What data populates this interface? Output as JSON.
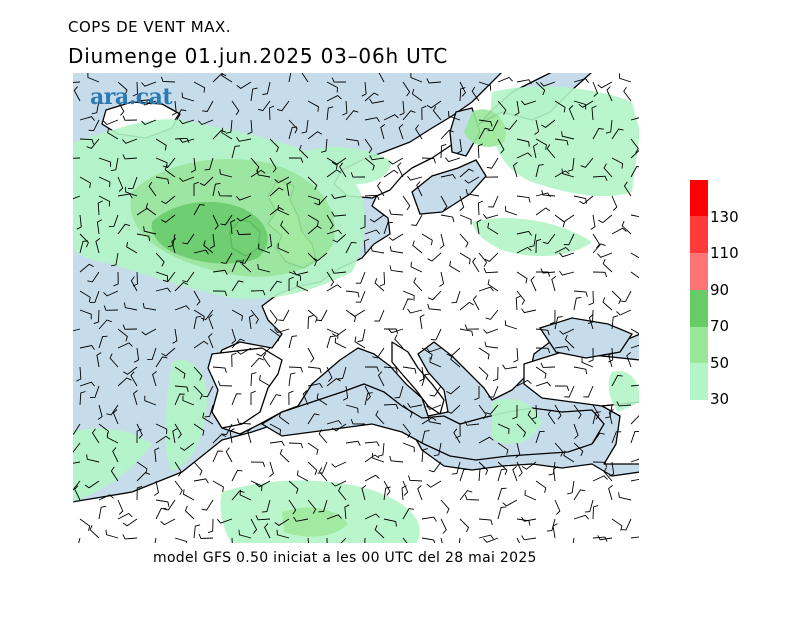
{
  "header": {
    "title": "COPS DE VENT MAX.",
    "subtitle": "Diumenge  01.jun.2025  03–06h UTC"
  },
  "logo": {
    "text": "ara.cat",
    "color": "#2a79b3"
  },
  "footer": {
    "text": "model GFS 0.50 iniciat a les 00 UTC del 28 mai 2025"
  },
  "legend": {
    "labels": [
      "130",
      "110",
      "90",
      "70",
      "50",
      "30"
    ],
    "bands": [
      {
        "from": 130,
        "color": "#ff0000"
      },
      {
        "from": 110,
        "color": "#ff3a3a"
      },
      {
        "from": 90,
        "color": "#ff7474"
      },
      {
        "from": 70,
        "color": "#66cc66"
      },
      {
        "from": 50,
        "color": "#99e899"
      },
      {
        "from": 30,
        "color": "#b3f5c6"
      }
    ]
  },
  "colors": {
    "sea": "#c7dceb",
    "land": "#ffffff",
    "gust_30": "#b3f5c6",
    "gust_50": "#99e899",
    "gust_70": "#66cc66",
    "coast": "#000000",
    "barb": "#000000"
  }
}
